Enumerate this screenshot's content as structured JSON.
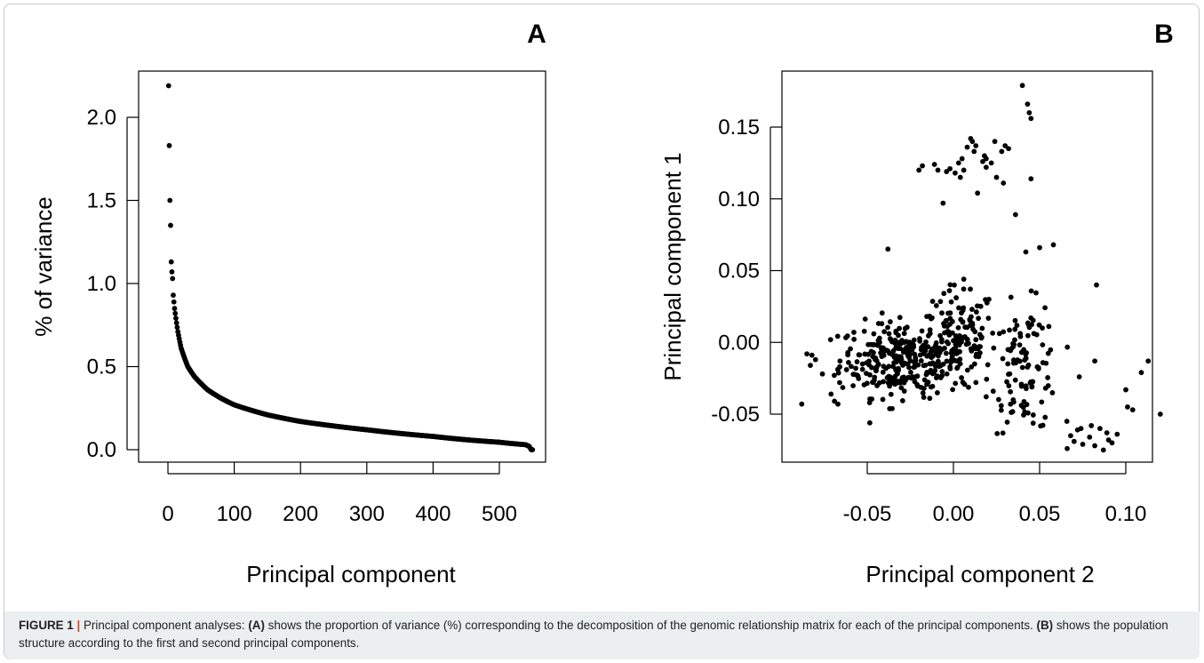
{
  "caption": {
    "label": "FIGURE 1",
    "separator": "|",
    "t1": " Principal component analyses: ",
    "ref_a": "(A)",
    "t2": " shows the proportion of variance (%) corresponding to the decomposition of the genomic relationship matrix for each of the principal components. ",
    "ref_b": "(B)",
    "t3": " shows the population structure according to the first and second principal components."
  },
  "chart_data": [
    {
      "panel": "A",
      "type": "scatter",
      "xlabel": "Principal component",
      "ylabel": "% of variance",
      "xlim": [
        0,
        550
      ],
      "ylim": [
        0,
        2.2
      ],
      "xticks": [
        "0",
        "100",
        "200",
        "300",
        "400",
        "500"
      ],
      "yticks": [
        "0.0",
        "0.5",
        "1.0",
        "1.5",
        "2.0"
      ],
      "n_points": 550,
      "x": [
        1,
        2,
        3,
        4,
        5,
        6,
        7,
        8,
        10,
        15,
        20,
        30,
        40,
        60,
        80,
        100,
        150,
        200,
        300,
        400,
        500,
        540,
        545,
        548
      ],
      "y": [
        2.19,
        1.83,
        1.5,
        1.35,
        1.13,
        1.07,
        1.03,
        0.93,
        0.85,
        0.71,
        0.61,
        0.5,
        0.44,
        0.36,
        0.31,
        0.27,
        0.21,
        0.17,
        0.12,
        0.08,
        0.045,
        0.03,
        0.02,
        0.0
      ]
    },
    {
      "panel": "B",
      "type": "scatter",
      "xlabel": "Principal component 2",
      "ylabel": "Principal component 1",
      "xlim": [
        -0.09,
        0.125
      ],
      "ylim": [
        -0.08,
        0.18
      ],
      "xticks": [
        "-0.05",
        "0.00",
        "0.05",
        "0.10"
      ],
      "yticks": [
        "-0.05",
        "0.00",
        "0.05",
        "0.10",
        "0.15"
      ],
      "points": [
        [
          0.04,
          0.179
        ],
        [
          0.043,
          0.166
        ],
        [
          0.044,
          0.16
        ],
        [
          0.045,
          0.156
        ],
        [
          0.045,
          0.114
        ],
        [
          0.01,
          0.142
        ],
        [
          0.011,
          0.14
        ],
        [
          0.013,
          0.137
        ],
        [
          0.008,
          0.136
        ],
        [
          0.012,
          0.133
        ],
        [
          0.024,
          0.14
        ],
        [
          0.03,
          0.137
        ],
        [
          0.032,
          0.135
        ],
        [
          0.028,
          0.133
        ],
        [
          0.018,
          0.13
        ],
        [
          0.019,
          0.128
        ],
        [
          0.017,
          0.126
        ],
        [
          0.022,
          0.125
        ],
        [
          0.019,
          0.122
        ],
        [
          0.005,
          0.128
        ],
        [
          0.003,
          0.125
        ],
        [
          -0.002,
          0.121
        ],
        [
          -0.004,
          0.119
        ],
        [
          0.001,
          0.118
        ],
        [
          0.004,
          0.115
        ],
        [
          -0.009,
          0.12
        ],
        [
          -0.011,
          0.124
        ],
        [
          -0.018,
          0.123
        ],
        [
          -0.02,
          0.12
        ],
        [
          0.006,
          0.12
        ],
        [
          0.014,
          0.104
        ],
        [
          0.025,
          0.115
        ],
        [
          0.029,
          0.111
        ],
        [
          -0.006,
          0.097
        ],
        [
          0.036,
          0.089
        ],
        [
          -0.038,
          0.065
        ],
        [
          0.058,
          0.068
        ],
        [
          0.042,
          0.063
        ],
        [
          0.05,
          0.066
        ],
        [
          0.087,
          -0.075
        ],
        [
          0.082,
          -0.072
        ],
        [
          0.075,
          -0.071
        ],
        [
          0.09,
          -0.068
        ],
        [
          0.079,
          -0.066
        ],
        [
          0.095,
          -0.064
        ],
        [
          0.07,
          -0.069
        ],
        [
          0.068,
          -0.065
        ],
        [
          0.085,
          -0.06
        ],
        [
          0.08,
          -0.058
        ],
        [
          0.072,
          -0.061
        ],
        [
          0.066,
          -0.074
        ],
        [
          0.074,
          -0.06
        ],
        [
          0.089,
          -0.063
        ],
        [
          0.092,
          -0.07
        ],
        [
          0.1,
          -0.033
        ],
        [
          0.101,
          -0.045
        ],
        [
          0.104,
          -0.047
        ],
        [
          0.109,
          -0.021
        ],
        [
          0.113,
          -0.013
        ],
        [
          0.12,
          -0.05
        ],
        [
          0.083,
          0.04
        ],
        [
          0.082,
          -0.013
        ],
        [
          0.073,
          -0.024
        ],
        [
          -0.088,
          -0.043
        ],
        [
          -0.085,
          -0.008
        ],
        [
          -0.083,
          -0.016
        ],
        [
          -0.08,
          -0.012
        ],
        [
          -0.076,
          -0.022
        ],
        [
          -0.071,
          -0.036
        ],
        [
          -0.069,
          -0.041
        ],
        [
          -0.067,
          -0.043
        ],
        [
          -0.066,
          -0.028
        ],
        [
          -0.062,
          -0.019
        ]
      ]
    }
  ]
}
